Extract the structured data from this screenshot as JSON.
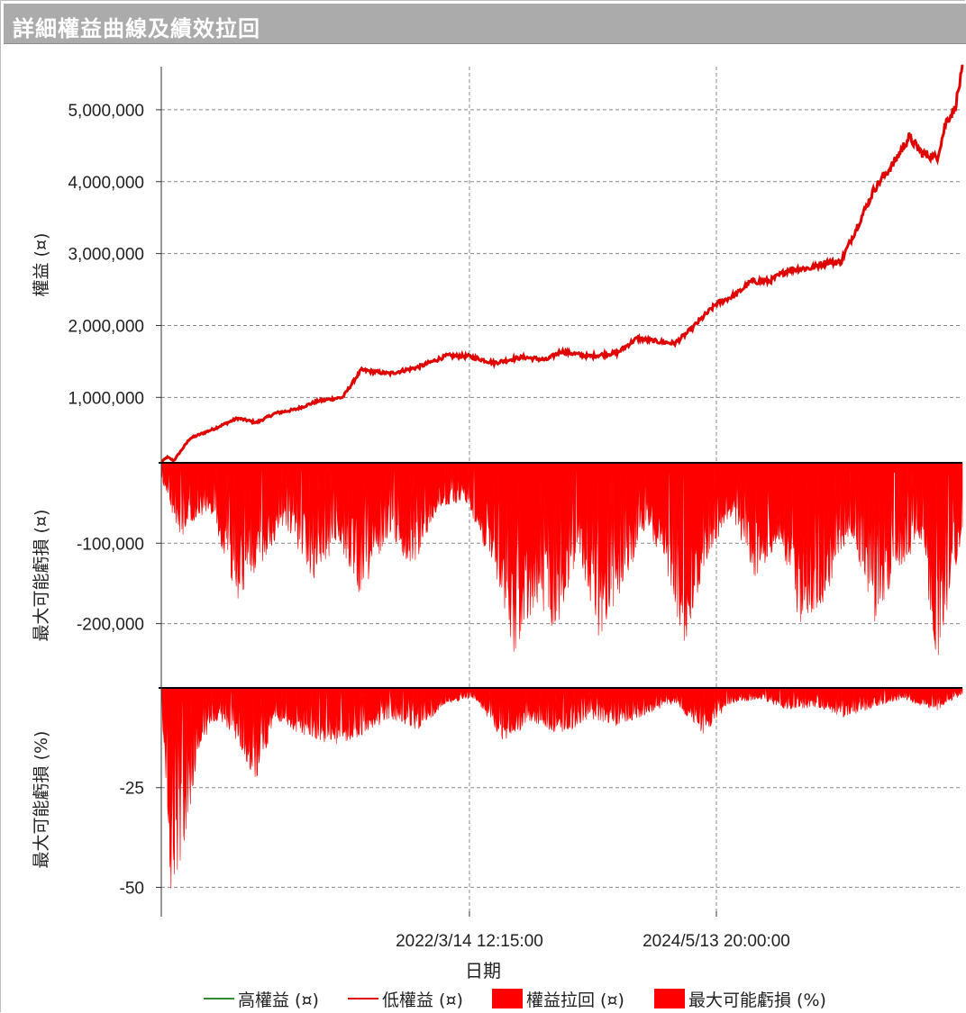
{
  "window": {
    "title": "詳細權益曲線及績效拉回"
  },
  "colors": {
    "high_equity": "#2e8b2e",
    "low_equity": "#e00000",
    "drawdown": "#ff0000",
    "grid": "#888888"
  },
  "chart_data": [
    {
      "type": "line",
      "ylabel": "權益 (¤)",
      "yticks": [
        "1,000,000",
        "2,000,000",
        "3,000,000",
        "4,000,000",
        "5,000,000"
      ],
      "ylim": [
        90000,
        5600000
      ],
      "series": [
        {
          "name": "高權益 (¤)",
          "color": "#2e8b2e"
        },
        {
          "name": "低權益 (¤)",
          "color": "#e00000"
        }
      ],
      "x": [
        "2019-07-01",
        "2019-07-20",
        "2019-08-10",
        "2019-10-01",
        "2019-12-15",
        "2020-03-01",
        "2020-05-01",
        "2020-07-01",
        "2020-09-01",
        "2020-11-15",
        "2021-02-01",
        "2021-04-01",
        "2021-07-01",
        "2021-10-01",
        "2022-01-01",
        "2022-03-14",
        "2022-06-01",
        "2022-09-01",
        "2022-11-15",
        "2023-01-01",
        "2023-04-01",
        "2023-07-01",
        "2023-09-01",
        "2023-11-01",
        "2024-01-01",
        "2024-02-15",
        "2024-05-13",
        "2024-07-15",
        "2024-09-01",
        "2024-11-01",
        "2025-01-01",
        "2025-03-15",
        "2025-05-01",
        "2025-06-15",
        "2025-08-01",
        "2025-10-01",
        "2025-12-01",
        "2026-01-20",
        "2026-03-01",
        "2026-04-20",
        "2026-05-20",
        "2026-06-15",
        "2026-07-10"
      ],
      "y": [
        100000,
        170000,
        120000,
        430000,
        560000,
        710000,
        650000,
        780000,
        830000,
        950000,
        1000000,
        1380000,
        1330000,
        1420000,
        1580000,
        1570000,
        1480000,
        1560000,
        1520000,
        1640000,
        1570000,
        1620000,
        1820000,
        1780000,
        1750000,
        1920000,
        2300000,
        2430000,
        2610000,
        2620000,
        2780000,
        2800000,
        2880000,
        2880000,
        3320000,
        3900000,
        4250000,
        4620000,
        4400000,
        4330000,
        4850000,
        5000000,
        5550000
      ]
    },
    {
      "type": "area",
      "ylabel": "最大可能虧損 (¤)",
      "yticks": [
        "-100,000",
        "-200,000"
      ],
      "ylim": [
        -280000,
        0
      ],
      "series": [
        {
          "name": "權益拉回 (¤)",
          "color": "#ff0000"
        }
      ],
      "x": [
        "2019-07-01",
        "2019-09-01",
        "2019-12-01",
        "2020-03-01",
        "2020-06-01",
        "2020-08-01",
        "2020-11-01",
        "2021-01-15",
        "2021-04-01",
        "2021-07-01",
        "2021-09-01",
        "2021-12-01",
        "2022-03-01",
        "2022-06-01",
        "2022-08-01",
        "2022-10-15",
        "2022-12-15",
        "2023-03-01",
        "2023-05-01",
        "2023-07-15",
        "2023-10-01",
        "2023-12-01",
        "2024-02-01",
        "2024-04-15",
        "2024-07-01",
        "2024-09-15",
        "2024-12-01",
        "2025-02-01",
        "2025-05-01",
        "2025-07-15",
        "2025-10-01",
        "2025-12-15",
        "2026-03-01",
        "2026-04-20",
        "2026-05-20",
        "2026-07-10"
      ],
      "y": [
        -20000,
        -100000,
        -60000,
        -180000,
        -120000,
        -80000,
        -160000,
        -100000,
        -175000,
        -90000,
        -150000,
        -60000,
        -50000,
        -140000,
        -250000,
        -180000,
        -220000,
        -120000,
        -230000,
        -170000,
        -80000,
        -140000,
        -240000,
        -120000,
        -70000,
        -150000,
        -100000,
        -210000,
        -180000,
        -90000,
        -210000,
        -140000,
        -100000,
        -270000,
        -200000,
        -90000
      ]
    },
    {
      "type": "area",
      "ylabel": "最大可能虧損 (%)",
      "yticks": [
        "-25",
        "-50"
      ],
      "ylim": [
        -56,
        0
      ],
      "series": [
        {
          "name": "最大可能虧損 (%)",
          "color": "#ff0000"
        }
      ],
      "x": [
        "2019-07-01",
        "2019-08-01",
        "2019-09-15",
        "2019-11-01",
        "2020-01-01",
        "2020-03-01",
        "2020-05-01",
        "2020-07-01",
        "2020-09-15",
        "2021-01-01",
        "2021-04-01",
        "2021-07-01",
        "2021-10-01",
        "2022-01-01",
        "2022-04-01",
        "2022-07-01",
        "2022-10-01",
        "2023-01-01",
        "2023-04-01",
        "2023-07-01",
        "2023-10-01",
        "2024-01-01",
        "2024-04-01",
        "2024-07-01",
        "2024-10-01",
        "2025-01-01",
        "2025-04-01",
        "2025-07-01",
        "2025-10-01",
        "2026-01-01",
        "2026-04-20",
        "2026-05-20",
        "2026-07-10"
      ],
      "y": [
        -2,
        -55,
        -40,
        -15,
        -8,
        -14,
        -25,
        -8,
        -12,
        -15,
        -13,
        -8,
        -11,
        -4,
        -3,
        -14,
        -9,
        -13,
        -8,
        -10,
        -7,
        -4,
        -12,
        -4,
        -3,
        -6,
        -5,
        -8,
        -5,
        -3,
        -6,
        -4,
        -2
      ]
    }
  ],
  "shared_x": {
    "label": "日期",
    "tick_labels": [
      "2022/3/14 12:15:00",
      "2024/5/13 20:00:00"
    ],
    "range": [
      "2019-07-01",
      "2026-07-10"
    ]
  },
  "legend": {
    "items": [
      {
        "label": "高權益 (¤)",
        "kind": "line",
        "color": "#2e8b2e"
      },
      {
        "label": "低權益 (¤)",
        "kind": "line",
        "color": "#e00000"
      },
      {
        "label": "權益拉回 (¤)",
        "kind": "box",
        "color": "#ff0000"
      },
      {
        "label": "最大可能虧損 (%)",
        "kind": "box",
        "color": "#ff0000"
      }
    ]
  }
}
